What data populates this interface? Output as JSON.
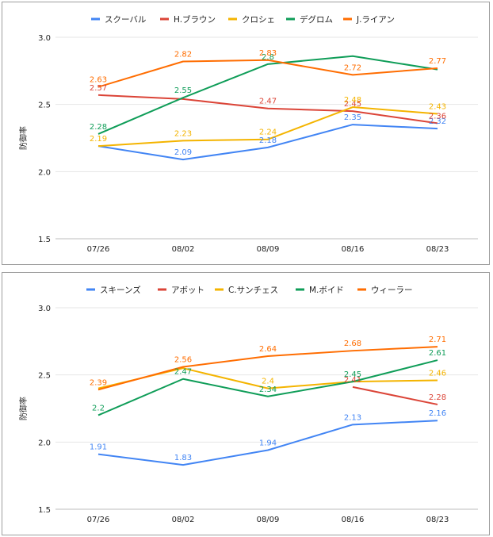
{
  "chart_data": [
    {
      "type": "line",
      "title": "",
      "xlabel": "",
      "ylabel": "防御率",
      "ylim": [
        1.5,
        3.0
      ],
      "yticks": [
        "1.5",
        "2.0",
        "2.5",
        "3.0"
      ],
      "categories": [
        "07/26",
        "08/02",
        "08/09",
        "08/16",
        "08/23"
      ],
      "grid": true,
      "legend": "top",
      "series": [
        {
          "name": "スクーバル",
          "color": "#4285f4",
          "values": [
            2.19,
            2.09,
            2.18,
            2.35,
            2.32
          ],
          "labels": [
            "",
            "2.09",
            "2.18",
            "2.35",
            "2.32"
          ]
        },
        {
          "name": "H.ブラウン",
          "color": "#db4437",
          "values": [
            2.57,
            2.54,
            2.47,
            2.45,
            2.36
          ],
          "labels": [
            "2.57",
            "",
            "2.47",
            "2.45",
            "2.36"
          ]
        },
        {
          "name": "クロシェ",
          "color": "#f4b400",
          "values": [
            2.19,
            2.23,
            2.24,
            2.48,
            2.43
          ],
          "labels": [
            "2.19",
            "2.23",
            "2.24",
            "2.48",
            "2.43"
          ]
        },
        {
          "name": "デグロム",
          "color": "#0f9d58",
          "values": [
            2.28,
            2.55,
            2.8,
            2.86,
            2.76
          ],
          "labels": [
            "2.28",
            "2.55",
            "2.8",
            "",
            ""
          ]
        },
        {
          "name": "J.ライアン",
          "color": "#ff6d01",
          "values": [
            2.63,
            2.82,
            2.83,
            2.72,
            2.77
          ],
          "labels": [
            "2.63",
            "2.82",
            "2.83",
            "2.72",
            "2.77"
          ]
        }
      ]
    },
    {
      "type": "line",
      "title": "",
      "xlabel": "",
      "ylabel": "防御率",
      "ylim": [
        1.5,
        3.0
      ],
      "yticks": [
        "1.5",
        "2.0",
        "2.5",
        "3.0"
      ],
      "categories": [
        "07/26",
        "08/02",
        "08/09",
        "08/16",
        "08/23"
      ],
      "grid": true,
      "legend": "top",
      "series": [
        {
          "name": "スキーンズ",
          "color": "#4285f4",
          "values": [
            1.91,
            1.83,
            1.94,
            2.13,
            2.16
          ],
          "labels": [
            "1.91",
            "1.83",
            "1.94",
            "2.13",
            "2.16"
          ]
        },
        {
          "name": "アボット",
          "color": "#db4437",
          "values": [
            null,
            null,
            null,
            2.41,
            2.28
          ],
          "labels": [
            "",
            "",
            "",
            "2.41",
            "2.28"
          ]
        },
        {
          "name": "C.サンチェス",
          "color": "#f4b400",
          "values": [
            2.4,
            2.55,
            2.4,
            2.45,
            2.46
          ],
          "labels": [
            "",
            "",
            "2.4",
            "",
            "2.46"
          ]
        },
        {
          "name": "M.ボイド",
          "color": "#0f9d58",
          "values": [
            2.2,
            2.47,
            2.34,
            2.45,
            2.61
          ],
          "labels": [
            "2.2",
            "2.47",
            "2.34",
            "2.45",
            "2.61"
          ]
        },
        {
          "name": "ウィーラー",
          "color": "#ff6d01",
          "values": [
            2.39,
            2.56,
            2.64,
            2.68,
            2.71
          ],
          "labels": [
            "2.39",
            "2.56",
            "2.64",
            "2.68",
            "2.71"
          ]
        }
      ]
    }
  ]
}
